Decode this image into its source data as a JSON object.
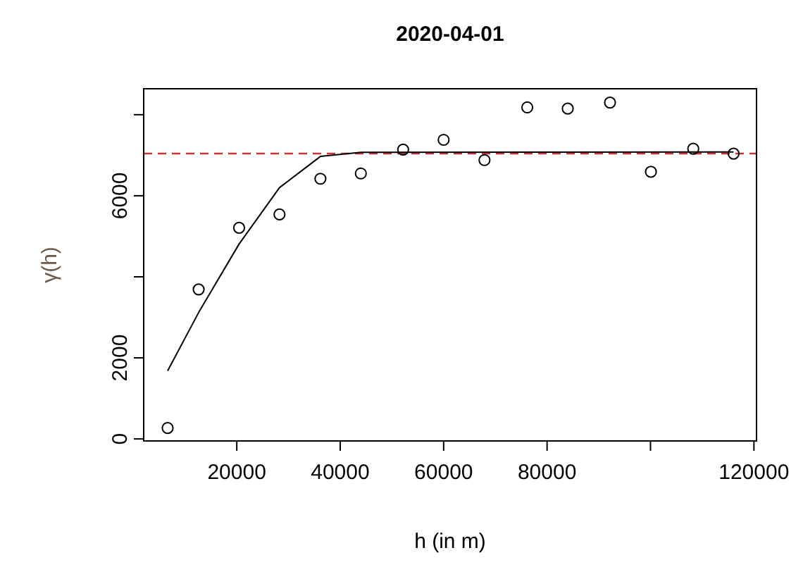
{
  "chart_data": {
    "type": "scatter",
    "title": "2020-04-01",
    "xlabel": "h (in m)",
    "ylabel": "γ(h)",
    "xlim": [
      2000,
      120500
    ],
    "ylim": [
      -50,
      8640
    ],
    "xticks": [
      20000,
      40000,
      60000,
      80000,
      {
        "value": 100000,
        "label": null
      },
      120000
    ],
    "yticks": [
      0,
      2000,
      {
        "value": 4000,
        "label": null
      },
      6000,
      {
        "value": 8000,
        "label": null
      }
    ],
    "grid": false,
    "series": [
      {
        "color": "#000000",
        "marker": "circle",
        "x": [
          6630,
          12630,
          20450,
          28260,
          36170,
          43990,
          52170,
          60000,
          67900,
          76170,
          84000,
          92170,
          100080,
          108270,
          116070
        ],
        "values": [
          270,
          3690,
          5210,
          5540,
          6420,
          6550,
          7140,
          7380,
          6880,
          8180,
          8150,
          8300,
          6590,
          7160,
          7040
        ]
      },
      {
        "type": "line",
        "color": "#000000",
        "line_style": "solid",
        "x": [
          6630,
          12630,
          20450,
          28260,
          36170,
          43990,
          116070
        ],
        "values": [
          1680,
          3120,
          4810,
          6200,
          6970,
          7070,
          7080
        ]
      }
    ],
    "ref_lines": [
      {
        "axis": "y",
        "value": 7040,
        "color": "#cc3333",
        "line_style": "dashed"
      }
    ]
  }
}
